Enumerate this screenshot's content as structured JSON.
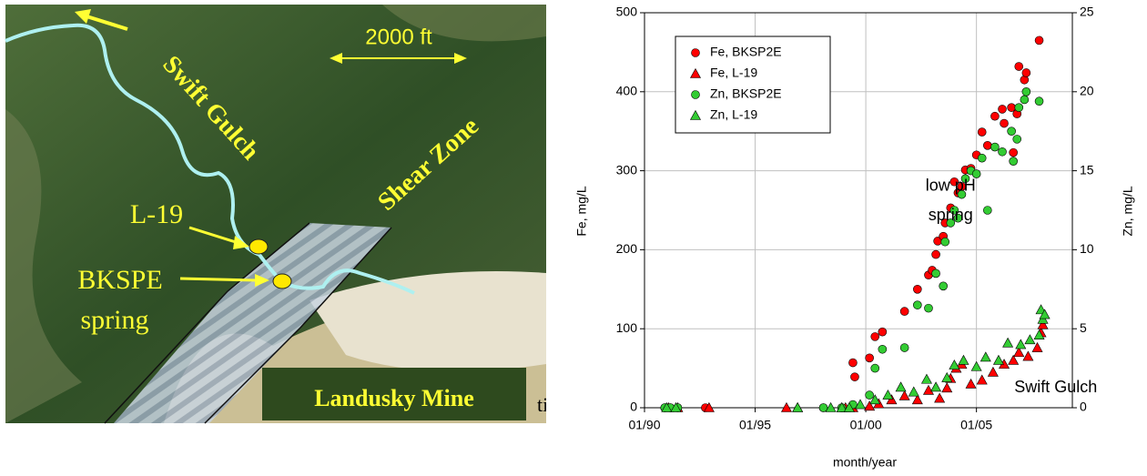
{
  "map": {
    "scale_label": "2000 ft",
    "stream_label": "Swift Gulch",
    "zone_label": "Shear Zone",
    "well_label": "L-19",
    "spring_label_1": "BKSPE",
    "spring_label_2": "spring",
    "mine_label": "Landusky Mine",
    "caption_fragment": "ti"
  },
  "chart_data": {
    "type": "scatter",
    "xlabel": "month/year",
    "ylabel": "Fe, mg/L",
    "y2label": "Zn, mg/L",
    "xlim": [
      "01/90",
      "05/09"
    ],
    "xticks": [
      "01/90",
      "01/95",
      "01/00",
      "01/05"
    ],
    "ylim": [
      0,
      500
    ],
    "yticks": [
      0,
      100,
      200,
      300,
      400,
      500
    ],
    "y2lim": [
      0,
      25
    ],
    "y2ticks": [
      0,
      5,
      10,
      15,
      20,
      25
    ],
    "grid": true,
    "legend": "upper left",
    "annotations": [
      {
        "text": "low pH",
        "x": "11/03",
        "y": 280
      },
      {
        "text": "spring",
        "x": "11/03",
        "y": 243
      },
      {
        "text": "Swift Gulch",
        "x": "08/08",
        "y": 25
      }
    ],
    "series": [
      {
        "name": "Fe, BKSP2E",
        "color": "#ff0000",
        "marker": "circle",
        "x": [
          "12/90",
          "03/91",
          "07/91",
          "10/92",
          "02/98",
          "12/98",
          "06/99",
          "07/99",
          "03/00",
          "06/00",
          "10/00",
          "10/01",
          "05/02",
          "11/02",
          "01/03",
          "03/03",
          "04/03",
          "07/03",
          "08/03",
          "11/03",
          "01/04",
          "03/04",
          "05/04",
          "07/04",
          "10/04",
          "01/05",
          "04/05",
          "07/05",
          "11/05",
          "03/06",
          "04/06",
          "08/06",
          "09/06",
          "11/06",
          "12/06",
          "03/07",
          "04/07",
          "11/07"
        ],
        "values": [
          0,
          0,
          0,
          0,
          0,
          0,
          57,
          39,
          63,
          90,
          96,
          122,
          150,
          168,
          174,
          194,
          211,
          217,
          234,
          253,
          286,
          272,
          280,
          301,
          303,
          320,
          349,
          332,
          369,
          378,
          360,
          380,
          323,
          372,
          432,
          415,
          424,
          465
        ]
      },
      {
        "name": "Fe, L-19",
        "color": "#ff0000",
        "marker": "triangle",
        "x": [
          "02/91",
          "07/91",
          "12/92",
          "06/96",
          "12/96",
          "12/98",
          "02/99",
          "06/99",
          "03/00",
          "08/00",
          "03/01",
          "10/01",
          "05/02",
          "11/02",
          "05/03",
          "09/03",
          "11/03",
          "02/04",
          "05/04",
          "10/04",
          "04/05",
          "10/05",
          "04/06",
          "09/06",
          "12/06",
          "05/07",
          "10/07",
          "12/07",
          "01/08"
        ],
        "values": [
          0,
          0,
          0,
          0,
          0,
          0,
          0,
          0,
          2,
          5,
          10,
          15,
          10,
          22,
          12,
          25,
          37,
          50,
          55,
          30,
          35,
          45,
          55,
          60,
          70,
          65,
          76,
          95,
          105
        ]
      },
      {
        "name": "Zn, BKSP2E",
        "color": "#33cc33",
        "marker": "circle",
        "axis": "y2",
        "x": [
          "12/90",
          "03/91",
          "07/91",
          "02/98",
          "12/98",
          "06/99",
          "03/00",
          "06/00",
          "10/00",
          "10/01",
          "05/02",
          "11/02",
          "03/03",
          "07/03",
          "08/03",
          "11/03",
          "01/04",
          "03/04",
          "05/04",
          "07/04",
          "10/04",
          "01/05",
          "04/05",
          "07/05",
          "11/05",
          "03/06",
          "08/06",
          "09/06",
          "11/06",
          "12/06",
          "03/07",
          "04/07",
          "11/07"
        ],
        "values": [
          0,
          0,
          0,
          0,
          0,
          0.2,
          0.8,
          2.5,
          3.7,
          3.8,
          6.5,
          6.3,
          8.5,
          7.7,
          10.5,
          11.7,
          12.5,
          12,
          13.5,
          14.5,
          15,
          14.8,
          15.8,
          12.5,
          16.5,
          16.2,
          17.5,
          15.6,
          17,
          19,
          19.5,
          20,
          19.4
        ]
      },
      {
        "name": "Zn, L-19",
        "color": "#33cc33",
        "marker": "triangle",
        "axis": "y2",
        "x": [
          "01/91",
          "06/91",
          "12/96",
          "06/98",
          "12/98",
          "04/99",
          "10/99",
          "06/00",
          "01/01",
          "08/01",
          "03/02",
          "10/02",
          "03/03",
          "09/03",
          "01/04",
          "06/04",
          "01/05",
          "06/05",
          "01/06",
          "06/06",
          "01/07",
          "06/07",
          "11/07",
          "01/08",
          "12/07",
          "02/08"
        ],
        "values": [
          0,
          0,
          0,
          0,
          0,
          0,
          0.2,
          0.5,
          0.8,
          1.3,
          1,
          1.8,
          1.3,
          1.9,
          2.7,
          3,
          2.6,
          3.2,
          3,
          4.1,
          4,
          4.3,
          4.6,
          5.6,
          6.2,
          5.9
        ]
      }
    ]
  }
}
